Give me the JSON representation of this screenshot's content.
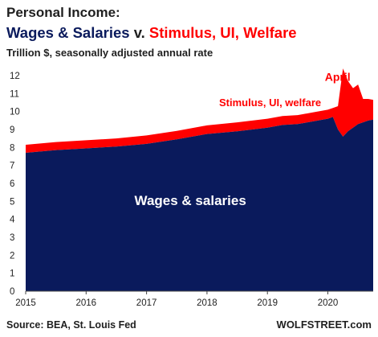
{
  "header": {
    "title_line1": "Personal Income:",
    "title_part_wages": "Wages & Salaries",
    "title_part_v": " v. ",
    "title_part_stimulus": "Stimulus, UI, Welfare",
    "subtitle": "Trillion $, seasonally adjusted annual rate"
  },
  "footer": {
    "source": "Source: BEA, St. Louis Fed",
    "brand": "WOLFSTREET.com"
  },
  "colors": {
    "wages": "#0a1a5c",
    "stimulus": "#ff0000",
    "title_dark": "#1f1f1f"
  },
  "chart_data": {
    "type": "area",
    "title": "Wages & Salaries v. Stimulus, UI, Welfare",
    "ylabel": "Trillion $, seasonally adjusted annual rate",
    "ylim": [
      0,
      12
    ],
    "xlim": [
      2015.0,
      2020.75
    ],
    "yticks": [
      0,
      1,
      2,
      3,
      4,
      5,
      6,
      7,
      8,
      9,
      10,
      11,
      12
    ],
    "xticks": [
      2015,
      2016,
      2017,
      2018,
      2019,
      2020
    ],
    "grid": false,
    "stacked": true,
    "annotations": [
      {
        "text": "Wages & salaries",
        "series": "Wages & salaries",
        "x": 2016.8,
        "y": 4.8
      },
      {
        "text": "Stimulus, UI, welfare",
        "series": "Stimulus, UI, welfare",
        "x": 2018.2,
        "y": 10.3
      },
      {
        "text": "April",
        "series": "Stimulus, UI, welfare",
        "x": 2019.95,
        "y": 11.7
      }
    ],
    "x": [
      2015.0,
      2015.5,
      2016.0,
      2016.5,
      2017.0,
      2017.5,
      2018.0,
      2018.5,
      2019.0,
      2019.25,
      2019.5,
      2019.75,
      2020.0,
      2020.083,
      2020.167,
      2020.25,
      2020.333,
      2020.417,
      2020.5,
      2020.583,
      2020.667,
      2020.75
    ],
    "series": [
      {
        "name": "Wages & salaries",
        "values": [
          7.7,
          7.85,
          7.95,
          8.05,
          8.2,
          8.45,
          8.75,
          8.9,
          9.1,
          9.25,
          9.3,
          9.45,
          9.6,
          9.7,
          9.0,
          8.6,
          8.9,
          9.1,
          9.3,
          9.4,
          9.5,
          9.55
        ]
      },
      {
        "name": "Stimulus, UI, welfare",
        "values": [
          0.45,
          0.45,
          0.45,
          0.45,
          0.47,
          0.47,
          0.48,
          0.5,
          0.5,
          0.5,
          0.5,
          0.5,
          0.5,
          0.5,
          1.3,
          3.8,
          2.8,
          2.2,
          2.2,
          1.3,
          1.2,
          1.1
        ]
      }
    ]
  }
}
